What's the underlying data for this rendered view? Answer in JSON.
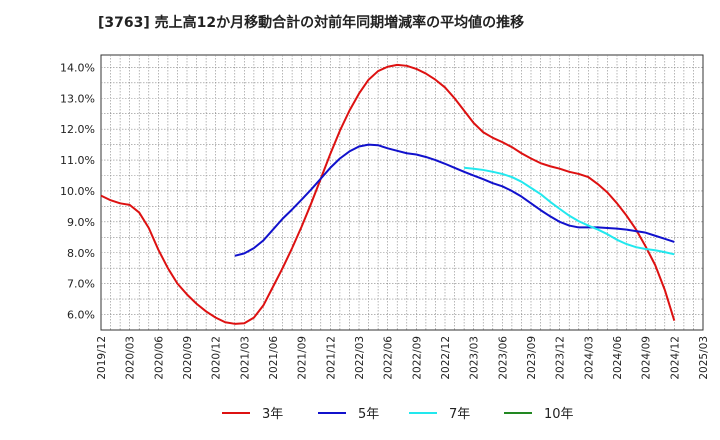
{
  "chart_data": {
    "type": "line",
    "title": "[3763]  売上高12か月移動合計の対前年同期増減率の平均値の推移",
    "xlabel": "",
    "ylabel": "",
    "ylim": [
      5.5,
      14.4
    ],
    "yticks": [
      6.0,
      7.0,
      8.0,
      9.0,
      10.0,
      11.0,
      12.0,
      13.0,
      14.0
    ],
    "ytick_labels": [
      "6.0%",
      "7.0%",
      "8.0%",
      "9.0%",
      "10.0%",
      "11.0%",
      "12.0%",
      "13.0%",
      "14.0%"
    ],
    "xtick_labels": [
      "2019/12",
      "2020/03",
      "2020/06",
      "2020/09",
      "2020/12",
      "2021/03",
      "2021/06",
      "2021/09",
      "2021/12",
      "2022/03",
      "2022/06",
      "2022/09",
      "2022/12",
      "2023/03",
      "2023/06",
      "2023/09",
      "2023/12",
      "2024/03",
      "2024/06",
      "2024/09",
      "2024/12",
      "2025/03"
    ],
    "x_start": "2019/12",
    "x_end": "2025/03",
    "grid": true,
    "legend_position": "bottom",
    "series": [
      {
        "name": "3年",
        "color": "#dd1111",
        "start": "2019/12",
        "values": [
          9.85,
          9.7,
          9.6,
          9.55,
          9.3,
          8.8,
          8.1,
          7.5,
          7.0,
          6.65,
          6.35,
          6.1,
          5.9,
          5.75,
          5.7,
          5.72,
          5.9,
          6.3,
          6.9,
          7.5,
          8.15,
          8.85,
          9.6,
          10.4,
          11.2,
          11.95,
          12.6,
          13.15,
          13.6,
          13.88,
          14.02,
          14.08,
          14.05,
          13.95,
          13.8,
          13.6,
          13.35,
          13.0,
          12.6,
          12.2,
          11.9,
          11.72,
          11.58,
          11.42,
          11.22,
          11.05,
          10.9,
          10.8,
          10.72,
          10.62,
          10.55,
          10.45,
          10.22,
          9.95,
          9.6,
          9.2,
          8.75,
          8.2,
          7.6,
          6.8,
          5.8
        ]
      },
      {
        "name": "5年",
        "color": "#1111cc",
        "start": "2021/02",
        "values": [
          7.9,
          7.98,
          8.15,
          8.4,
          8.75,
          9.1,
          9.4,
          9.72,
          10.05,
          10.4,
          10.75,
          11.05,
          11.28,
          11.44,
          11.5,
          11.48,
          11.38,
          11.3,
          11.22,
          11.18,
          11.1,
          11.0,
          10.88,
          10.75,
          10.62,
          10.5,
          10.38,
          10.25,
          10.15,
          10.0,
          9.82,
          9.6,
          9.38,
          9.18,
          9.0,
          8.88,
          8.82,
          8.82,
          8.82,
          8.8,
          8.78,
          8.75,
          8.7,
          8.65,
          8.55,
          8.45,
          8.35
        ]
      },
      {
        "name": "7年",
        "color": "#22e8ee",
        "start": "2023/02",
        "values": [
          10.75,
          10.72,
          10.68,
          10.62,
          10.55,
          10.45,
          10.3,
          10.1,
          9.9,
          9.65,
          9.42,
          9.2,
          9.02,
          8.88,
          8.75,
          8.6,
          8.42,
          8.28,
          8.18,
          8.12,
          8.08,
          8.02,
          7.95
        ]
      },
      {
        "name": "10年",
        "color": "#228822",
        "start": "2024/12",
        "values": []
      }
    ]
  }
}
